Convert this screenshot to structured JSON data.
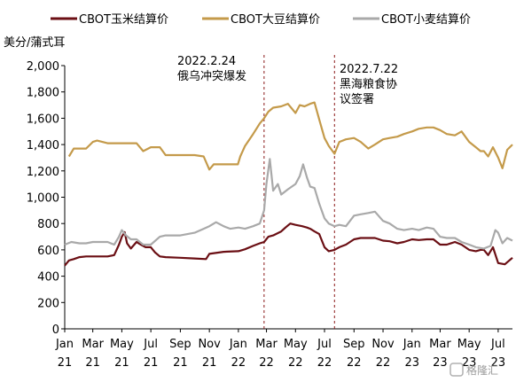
{
  "chart_data": {
    "type": "line",
    "ylabel": "美分/蒲式耳",
    "ylim": [
      0,
      2000
    ],
    "yticks": [
      "0",
      "200",
      "400",
      "600",
      "800",
      "1,000",
      "1,200",
      "1,400",
      "1,600",
      "1,800",
      "2,000"
    ],
    "ytick_values": [
      0,
      200,
      400,
      600,
      800,
      1000,
      1200,
      1400,
      1600,
      1800,
      2000
    ],
    "xlim": [
      "2021-01-01",
      "2023-07-31"
    ],
    "xticks": [
      {
        "date": "2021-01-01",
        "m": "Jan",
        "y": "21"
      },
      {
        "date": "2021-03-01",
        "m": "Mar",
        "y": "21"
      },
      {
        "date": "2021-05-01",
        "m": "May",
        "y": "21"
      },
      {
        "date": "2021-07-01",
        "m": "Jul",
        "y": "21"
      },
      {
        "date": "2021-09-01",
        "m": "Sep",
        "y": "21"
      },
      {
        "date": "2021-11-01",
        "m": "Nov",
        "y": "21"
      },
      {
        "date": "2022-01-01",
        "m": "Jan",
        "y": "22"
      },
      {
        "date": "2022-03-01",
        "m": "Mar",
        "y": "22"
      },
      {
        "date": "2022-05-01",
        "m": "May",
        "y": "22"
      },
      {
        "date": "2022-07-01",
        "m": "Jul",
        "y": "22"
      },
      {
        "date": "2022-09-01",
        "m": "Sep",
        "y": "22"
      },
      {
        "date": "2022-11-01",
        "m": "Nov",
        "y": "22"
      },
      {
        "date": "2023-01-01",
        "m": "Jan",
        "y": "23"
      },
      {
        "date": "2023-03-01",
        "m": "Mar",
        "y": "23"
      },
      {
        "date": "2023-05-01",
        "m": "May",
        "y": "23"
      },
      {
        "date": "2023-07-01",
        "m": "Jul",
        "y": "23"
      }
    ],
    "grid": false,
    "legend_position": "top",
    "series": [
      {
        "name": "CBOT玉米结算价",
        "color": "#6b0f14",
        "points": [
          [
            "2021-01-01",
            480
          ],
          [
            "2021-01-10",
            520
          ],
          [
            "2021-01-20",
            530
          ],
          [
            "2021-02-01",
            545
          ],
          [
            "2021-02-15",
            550
          ],
          [
            "2021-03-01",
            550
          ],
          [
            "2021-03-20",
            550
          ],
          [
            "2021-04-01",
            550
          ],
          [
            "2021-04-15",
            560
          ],
          [
            "2021-04-25",
            640
          ],
          [
            "2021-05-01",
            700
          ],
          [
            "2021-05-07",
            735
          ],
          [
            "2021-05-12",
            650
          ],
          [
            "2021-05-20",
            610
          ],
          [
            "2021-06-01",
            660
          ],
          [
            "2021-06-10",
            640
          ],
          [
            "2021-06-20",
            620
          ],
          [
            "2021-07-01",
            620
          ],
          [
            "2021-07-10",
            580
          ],
          [
            "2021-07-20",
            550
          ],
          [
            "2021-08-01",
            545
          ],
          [
            "2021-09-01",
            540
          ],
          [
            "2021-10-01",
            535
          ],
          [
            "2021-10-25",
            530
          ],
          [
            "2021-11-01",
            570
          ],
          [
            "2021-12-01",
            585
          ],
          [
            "2022-01-01",
            590
          ],
          [
            "2022-01-15",
            605
          ],
          [
            "2022-02-01",
            630
          ],
          [
            "2022-02-15",
            650
          ],
          [
            "2022-02-24",
            660
          ],
          [
            "2022-03-05",
            700
          ],
          [
            "2022-03-15",
            710
          ],
          [
            "2022-04-01",
            740
          ],
          [
            "2022-04-10",
            770
          ],
          [
            "2022-04-20",
            800
          ],
          [
            "2022-05-01",
            790
          ],
          [
            "2022-05-15",
            780
          ],
          [
            "2022-05-25",
            770
          ],
          [
            "2022-06-01",
            760
          ],
          [
            "2022-06-10",
            740
          ],
          [
            "2022-06-20",
            720
          ],
          [
            "2022-07-01",
            620
          ],
          [
            "2022-07-10",
            590
          ],
          [
            "2022-07-22",
            600
          ],
          [
            "2022-08-01",
            620
          ],
          [
            "2022-08-15",
            640
          ],
          [
            "2022-09-01",
            680
          ],
          [
            "2022-09-15",
            690
          ],
          [
            "2022-10-01",
            690
          ],
          [
            "2022-10-15",
            690
          ],
          [
            "2022-11-01",
            670
          ],
          [
            "2022-11-15",
            665
          ],
          [
            "2022-12-01",
            650
          ],
          [
            "2022-12-15",
            660
          ],
          [
            "2023-01-01",
            680
          ],
          [
            "2023-01-15",
            675
          ],
          [
            "2023-02-01",
            680
          ],
          [
            "2023-02-15",
            680
          ],
          [
            "2023-03-01",
            640
          ],
          [
            "2023-03-15",
            640
          ],
          [
            "2023-04-01",
            660
          ],
          [
            "2023-04-15",
            640
          ],
          [
            "2023-05-01",
            600
          ],
          [
            "2023-05-15",
            590
          ],
          [
            "2023-05-25",
            600
          ],
          [
            "2023-06-01",
            600
          ],
          [
            "2023-06-10",
            560
          ],
          [
            "2023-06-20",
            620
          ],
          [
            "2023-07-01",
            500
          ],
          [
            "2023-07-15",
            490
          ],
          [
            "2023-07-31",
            540
          ]
        ]
      },
      {
        "name": "CBOT大豆结算价",
        "color": "#c49a4a",
        "points": [
          [
            "2021-01-10",
            1310
          ],
          [
            "2021-01-20",
            1370
          ],
          [
            "2021-02-01",
            1370
          ],
          [
            "2021-02-15",
            1370
          ],
          [
            "2021-03-01",
            1420
          ],
          [
            "2021-03-10",
            1430
          ],
          [
            "2021-04-01",
            1410
          ],
          [
            "2021-05-01",
            1410
          ],
          [
            "2021-06-01",
            1410
          ],
          [
            "2021-06-15",
            1350
          ],
          [
            "2021-07-01",
            1380
          ],
          [
            "2021-07-20",
            1380
          ],
          [
            "2021-08-01",
            1320
          ],
          [
            "2021-09-01",
            1320
          ],
          [
            "2021-10-01",
            1320
          ],
          [
            "2021-10-20",
            1310
          ],
          [
            "2021-11-01",
            1210
          ],
          [
            "2021-11-10",
            1250
          ],
          [
            "2021-12-01",
            1250
          ],
          [
            "2021-12-31",
            1250
          ],
          [
            "2022-01-05",
            1310
          ],
          [
            "2022-01-15",
            1390
          ],
          [
            "2022-02-01",
            1480
          ],
          [
            "2022-02-15",
            1560
          ],
          [
            "2022-02-24",
            1600
          ],
          [
            "2022-03-05",
            1650
          ],
          [
            "2022-03-15",
            1680
          ],
          [
            "2022-04-01",
            1690
          ],
          [
            "2022-04-15",
            1710
          ],
          [
            "2022-05-01",
            1640
          ],
          [
            "2022-05-10",
            1700
          ],
          [
            "2022-05-20",
            1690
          ],
          [
            "2022-06-01",
            1710
          ],
          [
            "2022-06-10",
            1720
          ],
          [
            "2022-06-20",
            1590
          ],
          [
            "2022-07-01",
            1450
          ],
          [
            "2022-07-10",
            1390
          ],
          [
            "2022-07-22",
            1330
          ],
          [
            "2022-08-01",
            1420
          ],
          [
            "2022-08-15",
            1440
          ],
          [
            "2022-09-01",
            1450
          ],
          [
            "2022-09-15",
            1420
          ],
          [
            "2022-10-01",
            1370
          ],
          [
            "2022-10-15",
            1400
          ],
          [
            "2022-11-01",
            1440
          ],
          [
            "2022-11-15",
            1450
          ],
          [
            "2022-12-01",
            1460
          ],
          [
            "2022-12-15",
            1480
          ],
          [
            "2023-01-01",
            1500
          ],
          [
            "2023-01-15",
            1520
          ],
          [
            "2023-02-01",
            1530
          ],
          [
            "2023-02-15",
            1530
          ],
          [
            "2023-03-01",
            1510
          ],
          [
            "2023-03-15",
            1480
          ],
          [
            "2023-04-01",
            1470
          ],
          [
            "2023-04-15",
            1500
          ],
          [
            "2023-05-01",
            1420
          ],
          [
            "2023-05-15",
            1380
          ],
          [
            "2023-05-25",
            1350
          ],
          [
            "2023-06-01",
            1350
          ],
          [
            "2023-06-10",
            1310
          ],
          [
            "2023-06-20",
            1380
          ],
          [
            "2023-07-01",
            1300
          ],
          [
            "2023-07-10",
            1220
          ],
          [
            "2023-07-20",
            1360
          ],
          [
            "2023-07-31",
            1400
          ]
        ]
      },
      {
        "name": "CBOT小麦结算价",
        "color": "#a9a9a9",
        "points": [
          [
            "2021-01-01",
            640
          ],
          [
            "2021-01-15",
            660
          ],
          [
            "2021-02-01",
            650
          ],
          [
            "2021-02-15",
            650
          ],
          [
            "2021-03-01",
            660
          ],
          [
            "2021-04-01",
            660
          ],
          [
            "2021-04-15",
            640
          ],
          [
            "2021-04-25",
            700
          ],
          [
            "2021-05-01",
            750
          ],
          [
            "2021-05-10",
            710
          ],
          [
            "2021-05-20",
            680
          ],
          [
            "2021-06-01",
            680
          ],
          [
            "2021-06-15",
            640
          ],
          [
            "2021-07-01",
            640
          ],
          [
            "2021-07-20",
            700
          ],
          [
            "2021-08-01",
            710
          ],
          [
            "2021-09-01",
            710
          ],
          [
            "2021-10-01",
            730
          ],
          [
            "2021-10-20",
            760
          ],
          [
            "2021-11-01",
            780
          ],
          [
            "2021-11-15",
            810
          ],
          [
            "2021-12-01",
            780
          ],
          [
            "2021-12-15",
            760
          ],
          [
            "2022-01-01",
            770
          ],
          [
            "2022-01-15",
            760
          ],
          [
            "2022-02-01",
            780
          ],
          [
            "2022-02-15",
            800
          ],
          [
            "2022-02-24",
            900
          ],
          [
            "2022-03-01",
            1100
          ],
          [
            "2022-03-08",
            1290
          ],
          [
            "2022-03-15",
            1050
          ],
          [
            "2022-03-25",
            1100
          ],
          [
            "2022-04-01",
            1020
          ],
          [
            "2022-04-15",
            1060
          ],
          [
            "2022-05-01",
            1100
          ],
          [
            "2022-05-10",
            1160
          ],
          [
            "2022-05-17",
            1250
          ],
          [
            "2022-05-25",
            1150
          ],
          [
            "2022-06-01",
            1080
          ],
          [
            "2022-06-10",
            1070
          ],
          [
            "2022-06-20",
            950
          ],
          [
            "2022-07-01",
            840
          ],
          [
            "2022-07-10",
            800
          ],
          [
            "2022-07-22",
            780
          ],
          [
            "2022-08-01",
            790
          ],
          [
            "2022-08-15",
            780
          ],
          [
            "2022-09-01",
            860
          ],
          [
            "2022-09-15",
            870
          ],
          [
            "2022-10-01",
            880
          ],
          [
            "2022-10-15",
            890
          ],
          [
            "2022-11-01",
            820
          ],
          [
            "2022-11-15",
            800
          ],
          [
            "2022-12-01",
            760
          ],
          [
            "2022-12-15",
            750
          ],
          [
            "2023-01-01",
            760
          ],
          [
            "2023-01-15",
            750
          ],
          [
            "2023-02-01",
            770
          ],
          [
            "2023-02-15",
            760
          ],
          [
            "2023-03-01",
            700
          ],
          [
            "2023-03-15",
            690
          ],
          [
            "2023-04-01",
            690
          ],
          [
            "2023-04-15",
            660
          ],
          [
            "2023-05-01",
            640
          ],
          [
            "2023-05-15",
            620
          ],
          [
            "2023-06-01",
            610
          ],
          [
            "2023-06-15",
            630
          ],
          [
            "2023-06-25",
            750
          ],
          [
            "2023-07-01",
            730
          ],
          [
            "2023-07-10",
            650
          ],
          [
            "2023-07-20",
            690
          ],
          [
            "2023-07-31",
            670
          ]
        ]
      }
    ],
    "annotations": [
      {
        "date": "2022-02-24",
        "lines": [
          "2022.2.24",
          "俄乌冲突爆发"
        ]
      },
      {
        "date": "2022-07-22",
        "lines": [
          "2022.7.22",
          "黑海粮食协",
          "议签署"
        ]
      }
    ]
  },
  "watermark": "格隆汇"
}
